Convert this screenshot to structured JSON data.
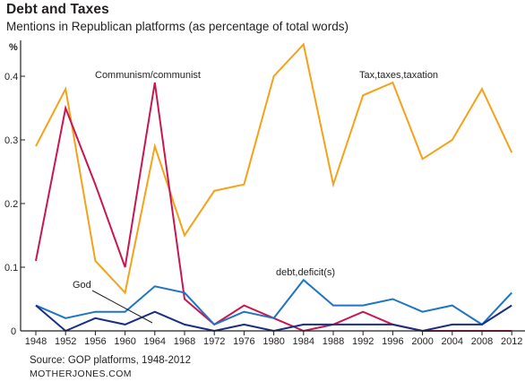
{
  "header": {
    "title": "Debt and Taxes",
    "subtitle": "Mentions in Republican platforms (as percentage of total words)"
  },
  "footer": {
    "source": "Source: GOP platforms, 1948-2012",
    "credit": "MOTHERJONES.COM"
  },
  "chart_data": {
    "type": "line",
    "title": "Debt and Taxes",
    "subtitle": "Mentions in Republican platforms (as percentage of total words)",
    "ylabel": "%",
    "xlabel": "",
    "ylim": [
      0,
      0.45
    ],
    "grid": false,
    "legend": "none",
    "x": [
      "1948",
      "1952",
      "1956",
      "1960",
      "1964",
      "1968",
      "1972",
      "1976",
      "1980",
      "1984",
      "1988",
      "1992",
      "1996",
      "2000",
      "2004",
      "2008",
      "2012"
    ],
    "yticks": [
      "0",
      "0.1",
      "0.2",
      "0.3",
      "0.4"
    ],
    "series": [
      {
        "name": "Tax,taxes,taxation",
        "color": "#f5a21a",
        "values": [
          0.29,
          0.38,
          0.11,
          0.06,
          0.29,
          0.15,
          0.22,
          0.23,
          0.4,
          0.45,
          0.23,
          0.37,
          0.39,
          0.27,
          0.3,
          0.38,
          0.28
        ]
      },
      {
        "name": "Communism/communist",
        "color": "#c8174f",
        "values": [
          0.11,
          0.35,
          0.23,
          0.1,
          0.39,
          0.05,
          0.01,
          0.04,
          0.02,
          0.0,
          0.01,
          0.03,
          0.01,
          0.0,
          0.0,
          0.0,
          0.0
        ]
      },
      {
        "name": "debt,deficit(s)",
        "color": "#1f74c6",
        "values": [
          0.04,
          0.02,
          0.03,
          0.03,
          0.07,
          0.06,
          0.01,
          0.03,
          0.02,
          0.08,
          0.04,
          0.04,
          0.05,
          0.03,
          0.04,
          0.01,
          0.06
        ]
      },
      {
        "name": "God",
        "color": "#172e86",
        "values": [
          0.04,
          0.0,
          0.02,
          0.01,
          0.03,
          0.01,
          0.0,
          0.01,
          0.0,
          0.01,
          0.01,
          0.01,
          0.01,
          0.0,
          0.01,
          0.01,
          0.04
        ]
      }
    ]
  }
}
